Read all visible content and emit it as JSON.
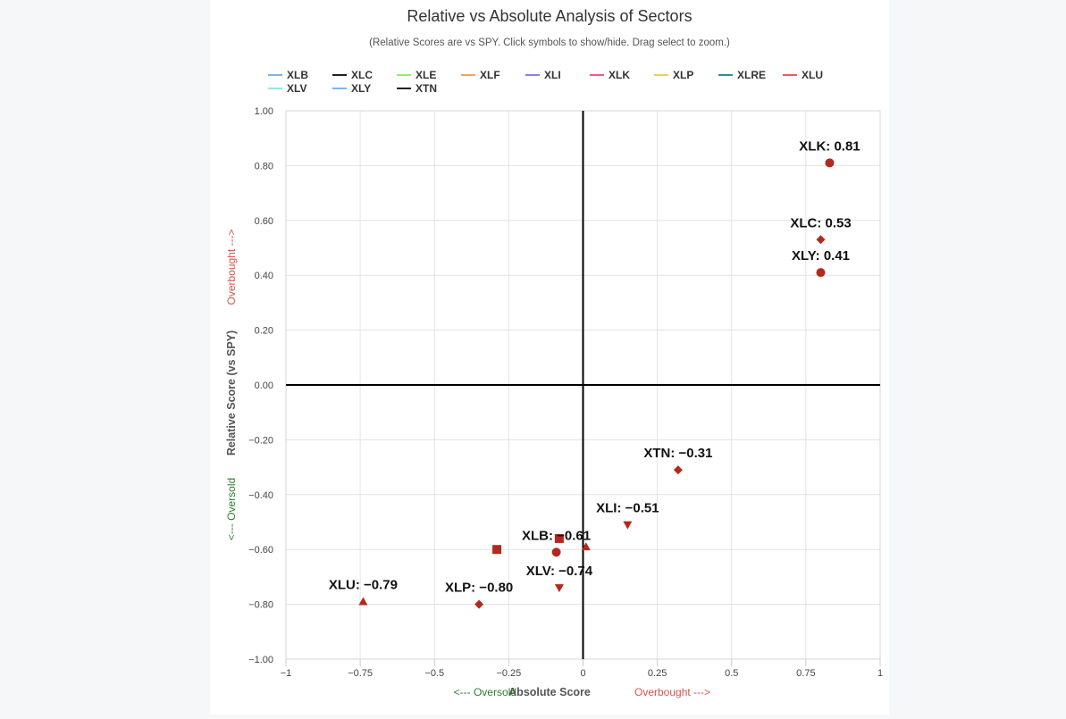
{
  "chart_data": {
    "type": "scatter",
    "title": "Relative vs Absolute Analysis of Sectors",
    "subtitle": "(Relative Scores are vs SPY. Click symbols to show/hide. Drag select to zoom.)",
    "xlabel": "Absolute Score",
    "ylabel": "Relative Score (vs SPY)",
    "x_hint_low": "<--- Oversold",
    "x_hint_high": "Overbought --->",
    "y_hint_low": "<--- Oversold",
    "y_hint_high": "Overbought --->",
    "xlim": [
      -1,
      1
    ],
    "ylim": [
      -1,
      1
    ],
    "x_ticks": [
      {
        "value": -1,
        "label": "−1"
      },
      {
        "value": -0.75,
        "label": "−0.75"
      },
      {
        "value": -0.5,
        "label": "−0.5"
      },
      {
        "value": -0.25,
        "label": "−0.25"
      },
      {
        "value": 0,
        "label": "0"
      },
      {
        "value": 0.25,
        "label": "0.25"
      },
      {
        "value": 0.5,
        "label": "0.5"
      },
      {
        "value": 0.75,
        "label": "0.75"
      },
      {
        "value": 1,
        "label": "1"
      }
    ],
    "y_ticks": [
      {
        "value": 1,
        "label": "1.00"
      },
      {
        "value": 0.8,
        "label": "0.80"
      },
      {
        "value": 0.6,
        "label": "0.60"
      },
      {
        "value": 0.4,
        "label": "0.40"
      },
      {
        "value": 0.2,
        "label": "0.20"
      },
      {
        "value": 0,
        "label": "0.00"
      },
      {
        "value": -0.2,
        "label": "−0.20"
      },
      {
        "value": -0.4,
        "label": "−0.40"
      },
      {
        "value": -0.6,
        "label": "−0.60"
      },
      {
        "value": -0.8,
        "label": "−0.80"
      },
      {
        "value": -1,
        "label": "−1.00"
      }
    ],
    "grid": true,
    "legend_position": "top",
    "marker_color": "#b5281c",
    "series": [
      {
        "name": "XLB",
        "legend_color": "#7cb5ec",
        "x": -0.09,
        "y": -0.61,
        "marker": "circle",
        "label": "XLB: −0.61"
      },
      {
        "name": "XLC",
        "legend_color": "#222222",
        "x": 0.8,
        "y": 0.53,
        "marker": "diamond",
        "label": "XLC: 0.53"
      },
      {
        "name": "XLE",
        "legend_color": "#90ed7d",
        "x": -0.29,
        "y": -0.6,
        "marker": "square",
        "label": ""
      },
      {
        "name": "XLF",
        "legend_color": "#f7a35c",
        "x": 0.01,
        "y": -0.59,
        "marker": "triangle",
        "label": ""
      },
      {
        "name": "XLI",
        "legend_color": "#8085e9",
        "x": 0.15,
        "y": -0.51,
        "marker": "triangle-down",
        "label": "XLI: −0.51"
      },
      {
        "name": "XLK",
        "legend_color": "#f15c80",
        "x": 0.83,
        "y": 0.81,
        "marker": "circle",
        "label": "XLK: 0.81"
      },
      {
        "name": "XLP",
        "legend_color": "#e4d354",
        "x": -0.35,
        "y": -0.8,
        "marker": "diamond",
        "label": "XLP: −0.80"
      },
      {
        "name": "XLRE",
        "legend_color": "#2b908f",
        "x": -0.08,
        "y": -0.56,
        "marker": "square",
        "label": ""
      },
      {
        "name": "XLU",
        "legend_color": "#f45b5b",
        "x": -0.74,
        "y": -0.79,
        "marker": "triangle",
        "label": "XLU: −0.79"
      },
      {
        "name": "XLV",
        "legend_color": "#91e8e1",
        "x": -0.08,
        "y": -0.74,
        "marker": "triangle-down",
        "label": "XLV: −0.74"
      },
      {
        "name": "XLY",
        "legend_color": "#7cb5ec",
        "x": 0.8,
        "y": 0.41,
        "marker": "circle",
        "label": "XLY: 0.41"
      },
      {
        "name": "XTN",
        "legend_color": "#222222",
        "x": 0.32,
        "y": -0.31,
        "marker": "diamond",
        "label": "XTN: −0.31"
      }
    ]
  }
}
